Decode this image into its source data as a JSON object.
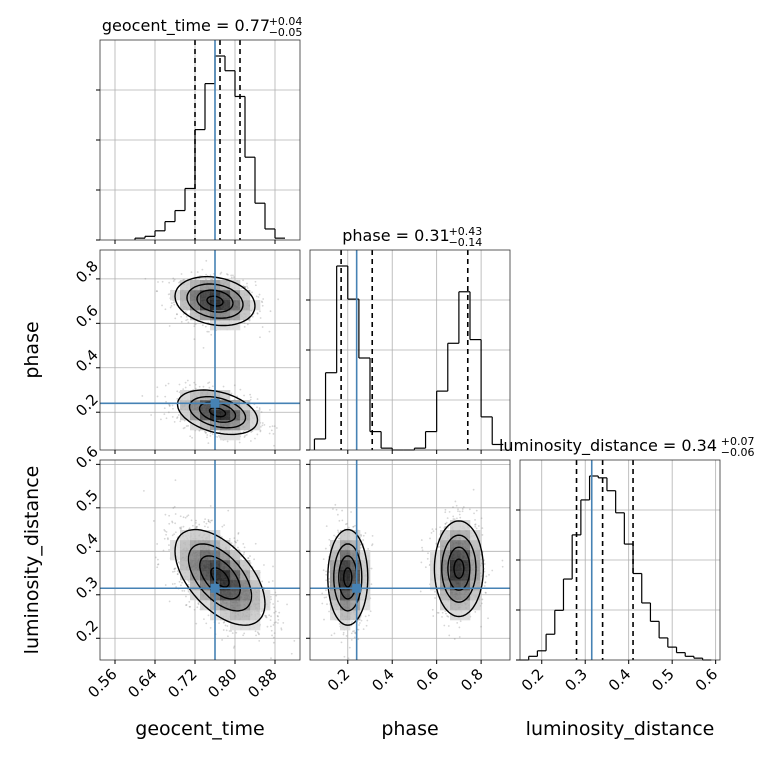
{
  "chart_data": {
    "type": "corner",
    "parameters": [
      "geocent_time",
      "phase",
      "luminosity_distance"
    ],
    "truths": {
      "geocent_time": 0.76,
      "phase": 0.24,
      "luminosity_distance": 0.315
    },
    "truth_color": "#4682b4",
    "titles": [
      {
        "name": "geocent_time",
        "value": "0.77",
        "plus": "+0.04",
        "minus": "−0.05",
        "quantiles": [
          0.72,
          0.77,
          0.81
        ]
      },
      {
        "name": "phase",
        "value": "0.31",
        "plus": "+0.43",
        "minus": "−0.14",
        "quantiles": [
          0.17,
          0.31,
          0.74
        ]
      },
      {
        "name": "luminosity_distance",
        "value": "0.34",
        "plus": "+0.07",
        "minus": "−0.06",
        "quantiles": [
          0.28,
          0.34,
          0.41
        ]
      }
    ],
    "axes": {
      "geocent_time": {
        "label": "geocent_time",
        "range": [
          0.53,
          0.93
        ],
        "ticks": [
          0.56,
          0.64,
          0.72,
          0.8,
          0.88
        ],
        "tick_labels": [
          "0.56",
          "0.64",
          "0.72",
          "0.80",
          "0.88"
        ]
      },
      "phase": {
        "label": "phase",
        "range": [
          0.03,
          0.93
        ],
        "ticks": [
          0.2,
          0.4,
          0.6,
          0.8
        ],
        "tick_labels": [
          "0.2",
          "0.4",
          "0.6",
          "0.8"
        ]
      },
      "luminosity_distance": {
        "label": "luminosity_distance",
        "range": [
          0.15,
          0.61
        ],
        "ticks": [
          0.2,
          0.3,
          0.4,
          0.5,
          0.6
        ],
        "tick_labels": [
          "0.2",
          "0.3",
          "0.4",
          "0.5",
          "0.6"
        ]
      }
    },
    "histograms": {
      "geocent_time": {
        "edges": [
          0.6,
          0.62,
          0.64,
          0.66,
          0.68,
          0.7,
          0.72,
          0.74,
          0.76,
          0.78,
          0.8,
          0.82,
          0.84,
          0.86,
          0.88,
          0.9
        ],
        "heights": [
          0.01,
          0.02,
          0.05,
          0.1,
          0.16,
          0.28,
          0.6,
          0.85,
          1.0,
          0.92,
          0.78,
          0.45,
          0.2,
          0.06,
          0.01
        ]
      },
      "phase": {
        "edges": [
          0.05,
          0.1,
          0.15,
          0.2,
          0.25,
          0.3,
          0.35,
          0.4,
          0.45,
          0.5,
          0.55,
          0.6,
          0.65,
          0.7,
          0.75,
          0.8,
          0.85,
          0.9
        ],
        "heights": [
          0.06,
          0.42,
          1.0,
          0.82,
          0.5,
          0.1,
          0.01,
          0.0,
          0.0,
          0.01,
          0.1,
          0.32,
          0.58,
          0.86,
          0.6,
          0.18,
          0.03
        ]
      },
      "luminosity_distance": {
        "edges": [
          0.15,
          0.17,
          0.19,
          0.21,
          0.23,
          0.25,
          0.27,
          0.29,
          0.31,
          0.33,
          0.35,
          0.37,
          0.39,
          0.41,
          0.43,
          0.45,
          0.47,
          0.49,
          0.51,
          0.53,
          0.55,
          0.57,
          0.59
        ],
        "heights": [
          0.0,
          0.02,
          0.05,
          0.14,
          0.27,
          0.44,
          0.68,
          0.87,
          1.0,
          0.99,
          0.92,
          0.8,
          0.63,
          0.47,
          0.31,
          0.21,
          0.12,
          0.07,
          0.04,
          0.02,
          0.01,
          0.0
        ]
      }
    },
    "joint": [
      {
        "x": "geocent_time",
        "y": "phase",
        "blobs": [
          {
            "cx": 0.76,
            "cy": 0.7,
            "sx": 0.04,
            "sy": 0.055,
            "rho": -0.2,
            "weight": 0.5
          },
          {
            "cx": 0.765,
            "cy": 0.2,
            "sx": 0.04,
            "sy": 0.05,
            "rho": -0.35,
            "weight": 0.5
          }
        ]
      },
      {
        "x": "geocent_time",
        "y": "luminosity_distance",
        "blobs": [
          {
            "cx": 0.77,
            "cy": 0.34,
            "sx": 0.045,
            "sy": 0.055,
            "rho": -0.55,
            "weight": 1.0
          }
        ]
      },
      {
        "x": "phase",
        "y": "luminosity_distance",
        "blobs": [
          {
            "cx": 0.2,
            "cy": 0.34,
            "sx": 0.045,
            "sy": 0.055,
            "rho": 0.0,
            "weight": 0.5
          },
          {
            "cx": 0.7,
            "cy": 0.36,
            "sx": 0.055,
            "sy": 0.055,
            "rho": 0.0,
            "weight": 0.5
          }
        ]
      }
    ],
    "grid": true
  }
}
